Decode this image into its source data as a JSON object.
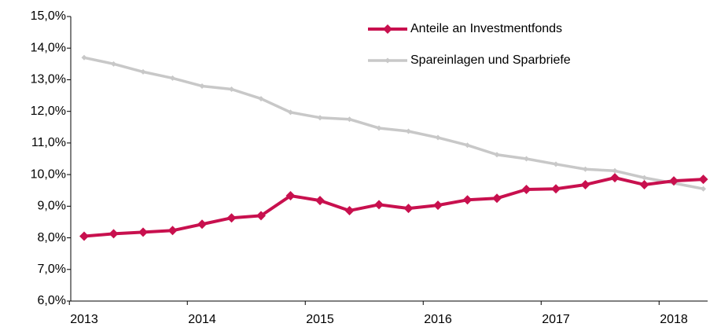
{
  "chart_data": {
    "type": "line",
    "categories": [
      "2013",
      null,
      null,
      null,
      "2014",
      null,
      null,
      null,
      "2015",
      null,
      null,
      null,
      "2016",
      null,
      null,
      null,
      "2017",
      null,
      null,
      null,
      "2018",
      null
    ],
    "series": [
      {
        "name": "Anteile an Investmentfonds",
        "color": "#c8104e",
        "values": [
          8.05,
          8.13,
          8.18,
          8.23,
          8.43,
          8.63,
          8.7,
          9.33,
          9.18,
          8.86,
          9.05,
          8.93,
          9.03,
          9.2,
          9.25,
          9.53,
          9.55,
          9.68,
          9.9,
          9.68,
          9.8,
          9.85
        ]
      },
      {
        "name": "Spareinlagen und Sparbriefe",
        "color": "#c8c8c8",
        "values": [
          13.7,
          13.5,
          13.25,
          13.05,
          12.8,
          12.7,
          12.4,
          11.97,
          11.8,
          11.75,
          11.47,
          11.37,
          11.17,
          10.93,
          10.63,
          10.5,
          10.33,
          10.17,
          10.12,
          9.9,
          9.73,
          9.55
        ]
      }
    ],
    "ylim": [
      6,
      15
    ],
    "yticks": [
      {
        "value": 6,
        "label": "6,0%"
      },
      {
        "value": 7,
        "label": "7,0%"
      },
      {
        "value": 8,
        "label": "8,0%"
      },
      {
        "value": 9,
        "label": "9,0%"
      },
      {
        "value": 10,
        "label": "10,0%"
      },
      {
        "value": 11,
        "label": "11,0%"
      },
      {
        "value": 12,
        "label": "12,0%"
      },
      {
        "value": 13,
        "label": "13,0%"
      },
      {
        "value": 14,
        "label": "14,0%"
      },
      {
        "value": 15,
        "label": "15,0%"
      }
    ],
    "grid": false,
    "legend": "top-right"
  }
}
